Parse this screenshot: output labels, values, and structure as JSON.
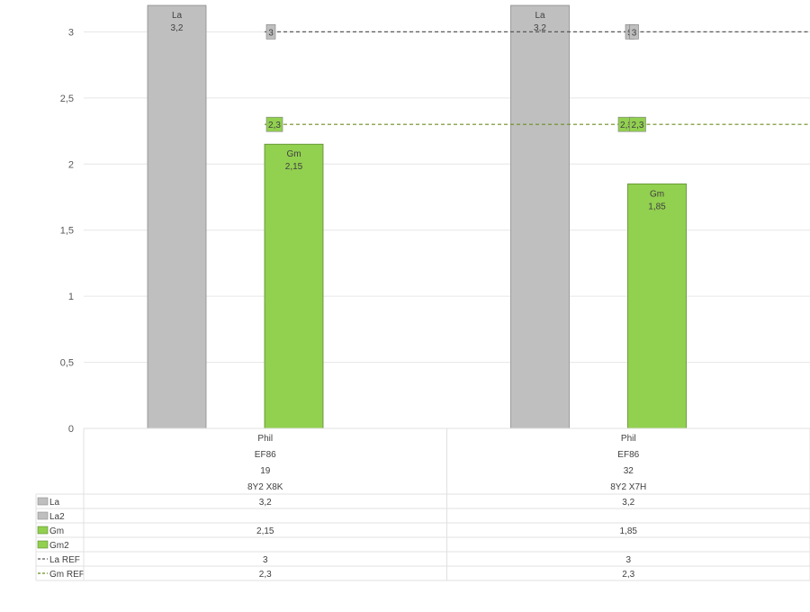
{
  "chart_data": {
    "type": "bar",
    "title": "",
    "xlabel": "",
    "ylabel": "",
    "ylim": [
      0,
      3.2
    ],
    "yticks": [
      "0",
      "0,5",
      "1",
      "1,5",
      "2",
      "2,5",
      "3"
    ],
    "ytick_values": [
      0,
      0.5,
      1,
      1.5,
      2,
      2.5,
      3
    ],
    "grid": true,
    "legend": "data-table",
    "categories": [
      {
        "lines": [
          "Phil",
          "EF86",
          "19",
          "8Y2 X8K"
        ]
      },
      {
        "lines": [
          "Phil",
          "EF86",
          "32",
          "8Y2 X7H"
        ]
      }
    ],
    "series": [
      {
        "name": "La",
        "kind": "bar",
        "color": "#bfbfbf",
        "stroke": "#8c8c8c",
        "values": [
          3.2,
          3.2
        ],
        "labels": [
          "3,2",
          "3,2"
        ],
        "table": [
          "3,2",
          "3,2"
        ]
      },
      {
        "name": "La2",
        "kind": "bar",
        "color": "#bfbfbf",
        "stroke": "#8c8c8c",
        "values": [
          null,
          null
        ],
        "labels": [
          "",
          ""
        ],
        "table": [
          "",
          ""
        ]
      },
      {
        "name": "Gm",
        "kind": "bar",
        "color": "#92d050",
        "stroke": "#5a8a2a",
        "values": [
          2.15,
          1.85
        ],
        "labels": [
          "2,15",
          "1,85"
        ],
        "table": [
          "2,15",
          "1,85"
        ]
      },
      {
        "name": "Gm2",
        "kind": "bar",
        "color": "#92d050",
        "stroke": "#5a8a2a",
        "values": [
          null,
          null
        ],
        "labels": [
          "",
          ""
        ],
        "table": [
          "",
          ""
        ]
      },
      {
        "name": "La REF",
        "kind": "line",
        "color": "#595959",
        "label_bg": "#bfbfbf",
        "values": [
          3,
          3
        ],
        "labels": [
          "3",
          "3"
        ],
        "table": [
          "3",
          "3"
        ]
      },
      {
        "name": "Gm REF",
        "kind": "line",
        "color": "#6b8e23",
        "label_bg": "#92d050",
        "values": [
          2.3,
          2.3
        ],
        "labels": [
          "2,3",
          "2,3"
        ],
        "table": [
          "2,3",
          "2,3"
        ]
      }
    ]
  }
}
